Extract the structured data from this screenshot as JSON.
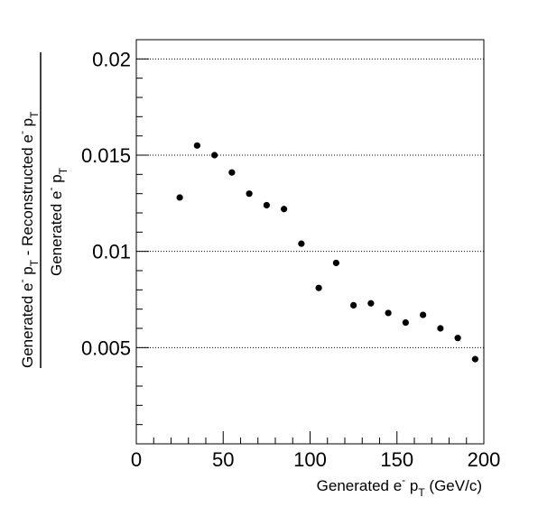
{
  "chart_data": {
    "type": "scatter",
    "title": "",
    "xlabel": {
      "base": "Generated e",
      "sup": "-",
      "mid": " p",
      "sub": "T",
      "tail": " (GeV/c)"
    },
    "ylabel": {
      "numerator": {
        "p1": "Generated e",
        "p1sup": "-",
        "p2": " p",
        "p2sub": "T",
        "p3": " - Reconstructed e",
        "p3sup": "-",
        "p4": " p",
        "p4sub": "T"
      },
      "denominator": {
        "p1": "Generated e",
        "p1sup": "-",
        "p2": " p",
        "p2sub": "T"
      }
    },
    "xlim": [
      0,
      200
    ],
    "ylim": [
      0,
      0.021
    ],
    "x_ticks": [
      "0",
      "50",
      "100",
      "150",
      "200"
    ],
    "y_ticks": [
      "0.005",
      "0.01",
      "0.015",
      "0.02"
    ],
    "grid": "horizontal dotted",
    "series": [
      {
        "x": [
          25,
          35,
          45,
          55,
          65,
          75,
          85,
          95,
          105,
          115,
          125,
          135,
          145,
          155,
          165,
          175,
          185,
          195
        ],
        "y": [
          0.0128,
          0.0155,
          0.015,
          0.0141,
          0.013,
          0.0124,
          0.0122,
          0.0104,
          0.0081,
          0.0094,
          0.0072,
          0.0073,
          0.0068,
          0.0063,
          0.0067,
          0.006,
          0.0055,
          0.0044
        ]
      }
    ],
    "colors": {
      "marker": "#000000",
      "grid": "#000000",
      "frame": "#000000"
    }
  }
}
